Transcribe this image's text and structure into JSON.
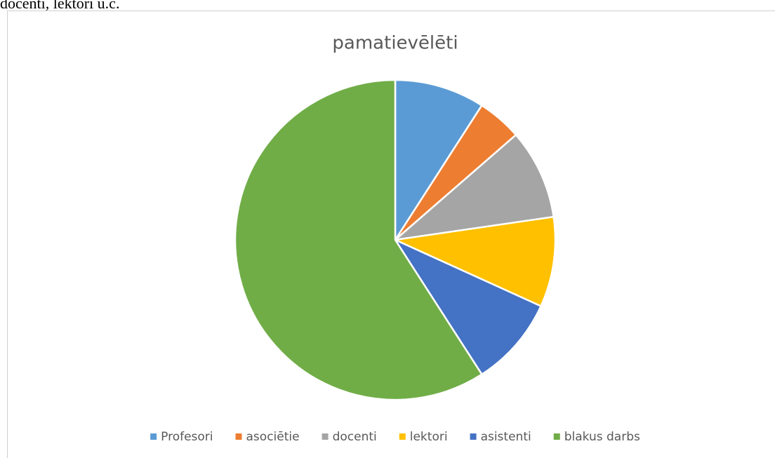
{
  "page_text": "docenti, lektori u.c.",
  "chart_data": {
    "type": "pie",
    "title": "pamatievēlēti",
    "categories": [
      "Profesori",
      "asociētie",
      "docenti",
      "lektori",
      "asistenti",
      "blakus darbs"
    ],
    "values": [
      9.1,
      4.5,
      9.1,
      9.1,
      9.1,
      59.1
    ],
    "colors": [
      "#5b9bd5",
      "#ed7d31",
      "#a5a5a5",
      "#ffc000",
      "#4472c4",
      "#70ad47"
    ],
    "legend": "bottom"
  }
}
